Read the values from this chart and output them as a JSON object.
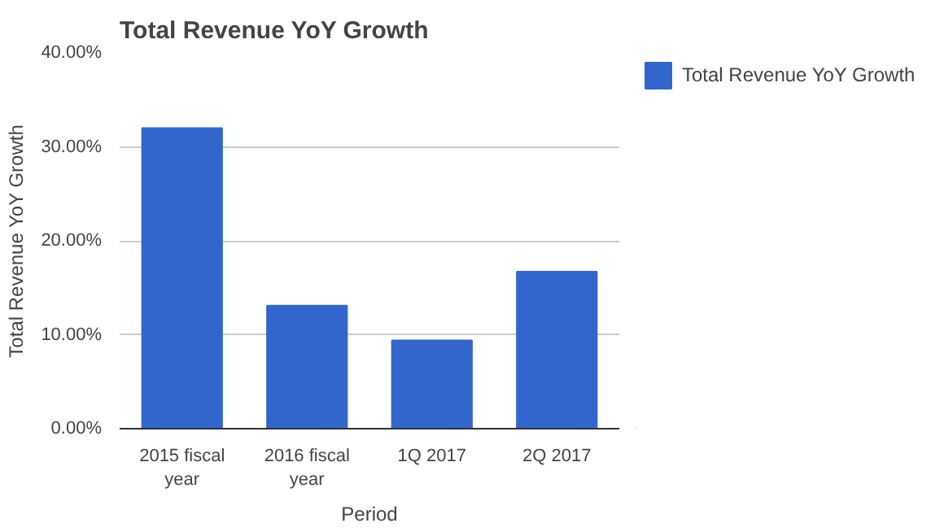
{
  "chart_data": {
    "type": "bar",
    "title": "Total Revenue YoY Growth",
    "xlabel": "Period",
    "ylabel": "Total Revenue YoY Growth",
    "categories": [
      "2015 fiscal year",
      "2016 fiscal year",
      "1Q 2017",
      "2Q 2017"
    ],
    "series": [
      {
        "name": "Total Revenue YoY Growth",
        "color": "#3366cc",
        "values": [
          32.0,
          13.1,
          9.4,
          16.7
        ]
      }
    ],
    "ylim": [
      0,
      40
    ],
    "yticks": [
      {
        "value": 0,
        "label": "0.00%"
      },
      {
        "value": 10,
        "label": "10.00%"
      },
      {
        "value": 20,
        "label": "20.00%"
      },
      {
        "value": 30,
        "label": "30.00%"
      },
      {
        "value": 40,
        "label": "40.00%"
      }
    ],
    "grid": "y",
    "legend": "right"
  }
}
